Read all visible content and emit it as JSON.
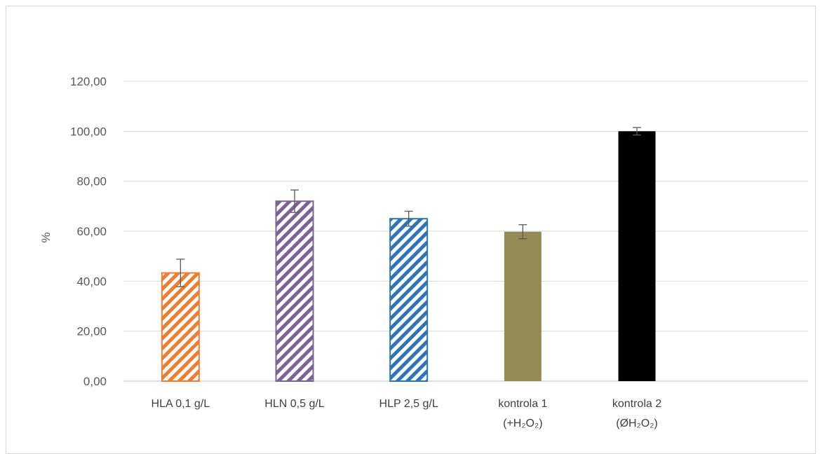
{
  "chart_data": {
    "type": "bar",
    "title": "",
    "xlabel": "",
    "ylabel": "%",
    "ylim": [
      0,
      120
    ],
    "yticks": [
      "0,00",
      "20,00",
      "40,00",
      "60,00",
      "80,00",
      "100,00",
      "120,00"
    ],
    "ytick_values": [
      0,
      20,
      40,
      60,
      80,
      100,
      120
    ],
    "grid": true,
    "legend": "none",
    "categories": [
      {
        "line1": "HLA 0,1 g/L",
        "line2": ""
      },
      {
        "line1": "HLN 0,5 g/L",
        "line2": ""
      },
      {
        "line1": "HLP 2,5 g/L",
        "line2": ""
      },
      {
        "line1": "kontrola 1",
        "line2": "(+H₂O₂)"
      },
      {
        "line1": "kontrola 2",
        "line2": "(ØH₂O₂)"
      }
    ],
    "values": [
      43.3,
      72.0,
      65.0,
      59.8,
      100.0
    ],
    "errors": [
      5.5,
      4.5,
      3.0,
      2.8,
      1.5
    ],
    "bars": [
      {
        "color": "#ed7d31",
        "pattern": "hatch"
      },
      {
        "color": "#7b6494",
        "pattern": "hatch"
      },
      {
        "color": "#2e75b6",
        "pattern": "hatch"
      },
      {
        "color": "#948a54",
        "pattern": "solid"
      },
      {
        "color": "#000000",
        "pattern": "solid"
      }
    ]
  }
}
